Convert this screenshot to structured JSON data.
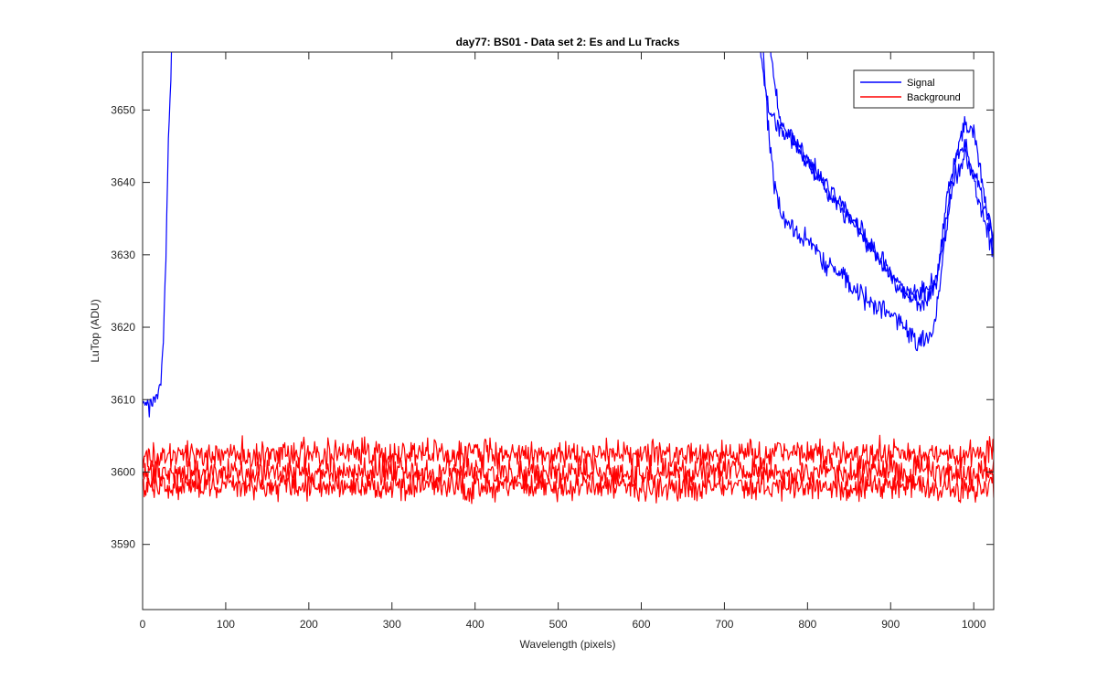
{
  "chart_data": {
    "type": "line",
    "title": "day77: BS01 - Data set 2: Es and Lu Tracks",
    "xlabel": "Wavelength (pixels)",
    "ylabel": "LuTop (ADU)",
    "xlim": [
      0,
      1024
    ],
    "ylim": [
      3581,
      3658
    ],
    "xticks": [
      0,
      100,
      200,
      300,
      400,
      500,
      600,
      700,
      800,
      900,
      1000
    ],
    "yticks": [
      3590,
      3600,
      3610,
      3620,
      3630,
      3640,
      3650
    ],
    "grid": false,
    "legend_position": "top-right",
    "series": [
      {
        "name": "Signal",
        "color": "#0000ff",
        "tracks": [
          {
            "x": [
              0,
              8,
              16,
              22,
              25,
              28,
              31,
              34,
              37,
              40
            ],
            "y": [
              3610,
              3609,
              3610,
              3612,
              3618,
              3630,
              3645,
              3655,
              3665,
              3680
            ]
          },
          {
            "x": [
              730,
              740,
              750,
              760,
              780,
              800,
              820,
              840,
              860,
              880,
              900,
              920,
              940,
              955,
              965,
              975,
              990,
              1000,
              1010,
              1024
            ],
            "y": [
              3680,
              3662,
              3652,
              3648,
              3646,
              3643,
              3640,
              3637,
              3634,
              3630,
              3627,
              3625,
              3625,
              3626,
              3633,
              3642,
              3648,
              3647,
              3640,
              3632
            ]
          },
          {
            "x": [
              745,
              755,
              765,
              775,
              790,
              810,
              830,
              850,
              870,
              890,
              910,
              925,
              935,
              945,
              955,
              962,
              968,
              980,
              990,
              1005,
              1024
            ],
            "y": [
              3680,
              3658,
              3650,
              3647,
              3645,
              3641,
              3638,
              3635,
              3632,
              3629,
              3625,
              3624,
              3623,
              3624,
              3626,
              3632,
              3639,
              3644,
              3645,
              3638,
              3630
            ]
          },
          {
            "x": [
              735,
              745,
              752,
              760,
              770,
              785,
              800,
              820,
              840,
              860,
              880,
              900,
              915,
              930,
              940,
              950,
              958,
              965,
              975,
              990,
              1005,
              1024
            ],
            "y": [
              3680,
              3662,
              3648,
              3640,
              3635,
              3633,
              3632,
              3629,
              3627,
              3625,
              3623,
              3622,
              3620,
              3618,
              3618,
              3619,
              3624,
              3632,
              3640,
              3644,
              3640,
              3632
            ]
          }
        ]
      },
      {
        "name": "Background",
        "color": "#ff0000",
        "tracks": [
          {
            "x": [
              0,
              1024
            ],
            "y": [
              3602.5,
              3602.5
            ]
          },
          {
            "x": [
              0,
              1024
            ],
            "y": [
              3600.0,
              3600.0
            ]
          },
          {
            "x": [
              0,
              1024
            ],
            "y": [
              3598.0,
              3598.0
            ]
          }
        ]
      }
    ]
  }
}
